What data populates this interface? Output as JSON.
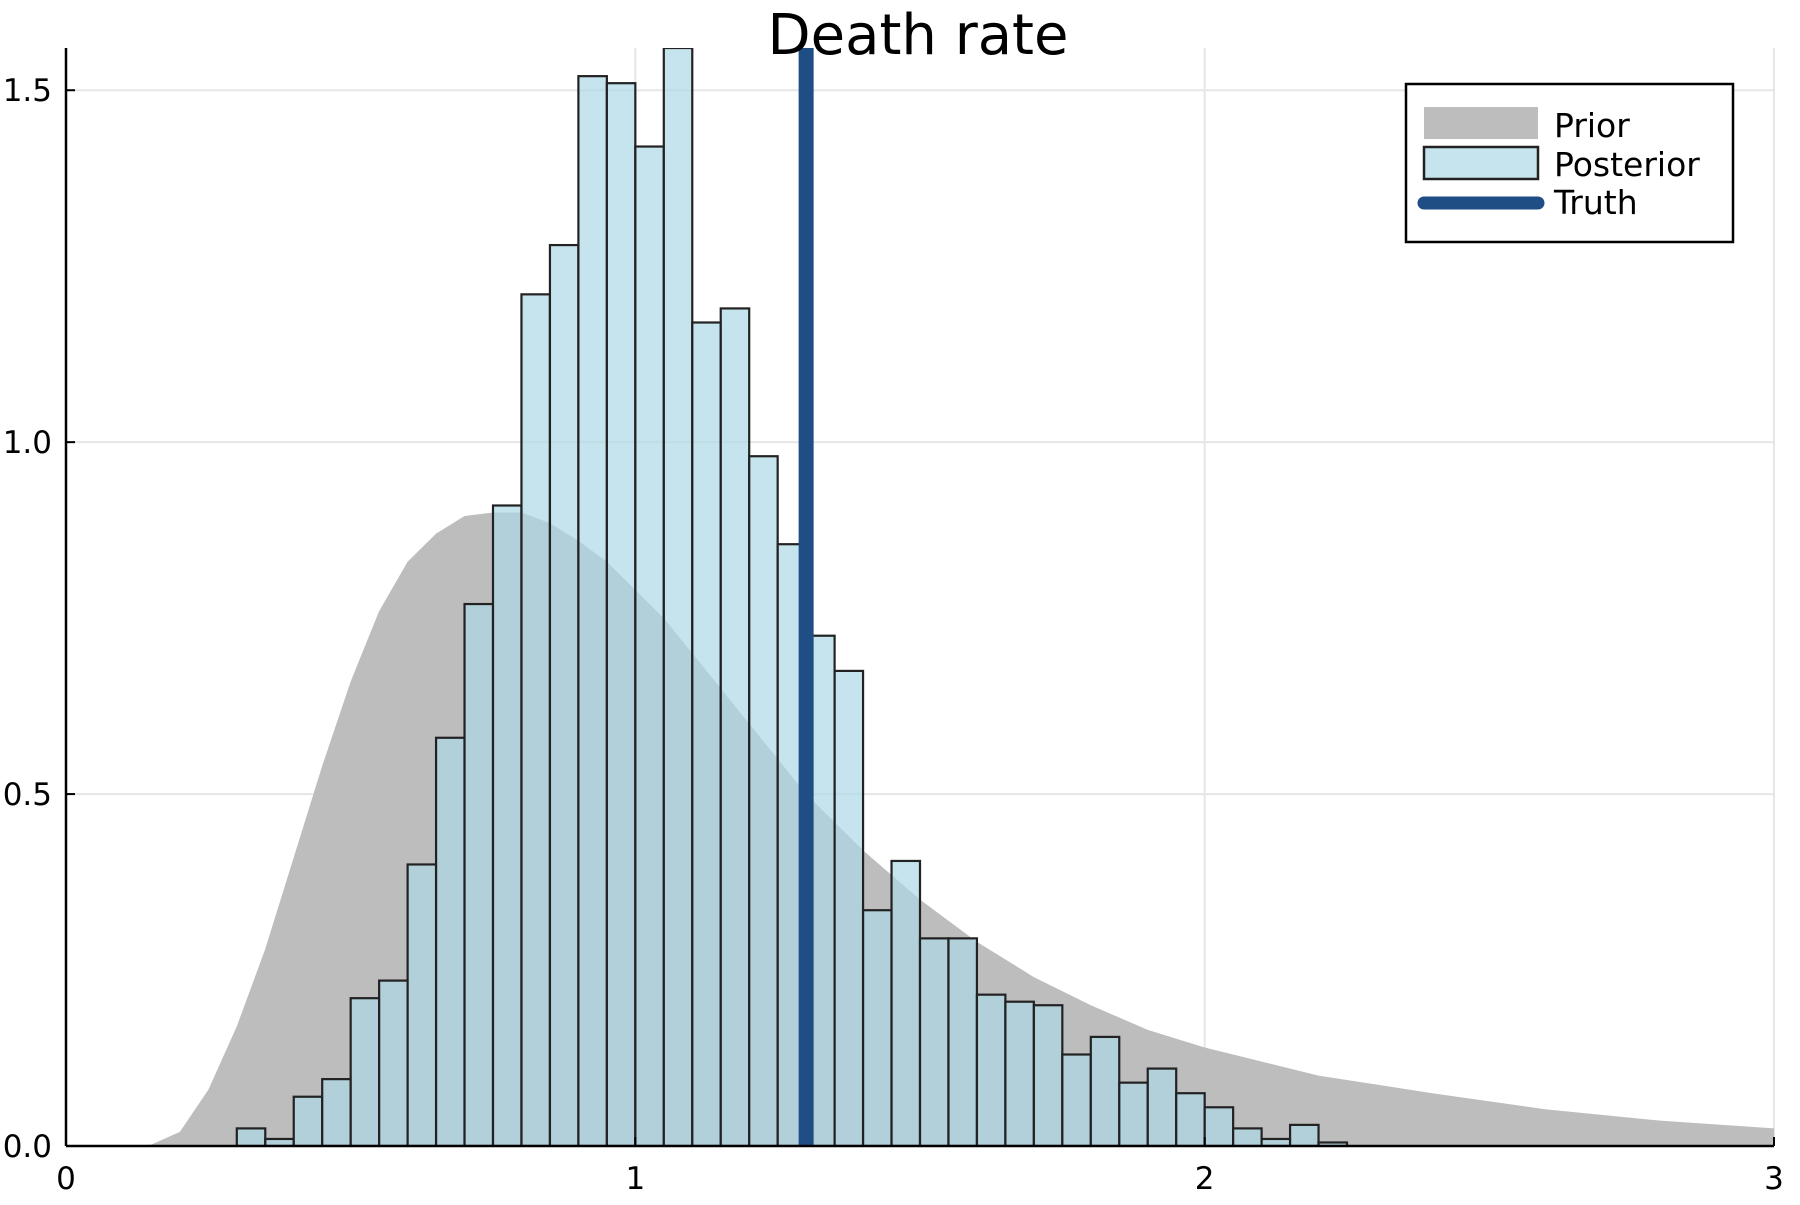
{
  "chart_data": {
    "type": "bar",
    "title": "Death rate",
    "xlabel": "",
    "ylabel": "",
    "xlim": [
      0,
      3
    ],
    "ylim": [
      0,
      1.56
    ],
    "grid": true,
    "legend_position": "top-right",
    "x_ticks": [
      {
        "value": 0,
        "label": "0"
      },
      {
        "value": 1,
        "label": "1"
      },
      {
        "value": 2,
        "label": "2"
      },
      {
        "value": 3,
        "label": "3"
      }
    ],
    "y_ticks": [
      {
        "value": 0,
        "label": "0.0"
      },
      {
        "value": 0.5,
        "label": "0.5"
      },
      {
        "value": 1.0,
        "label": "1.0"
      },
      {
        "value": 1.5,
        "label": "1.5"
      }
    ],
    "series": [
      {
        "name": "Prior",
        "kind": "area",
        "color": "#bdbdbd",
        "x": [
          0,
          0.1,
          0.15,
          0.2,
          0.25,
          0.3,
          0.35,
          0.4,
          0.45,
          0.5,
          0.55,
          0.6,
          0.65,
          0.7,
          0.75,
          0.8,
          0.85,
          0.9,
          0.95,
          1.0,
          1.05,
          1.1,
          1.15,
          1.2,
          1.25,
          1.3,
          1.35,
          1.4,
          1.45,
          1.5,
          1.6,
          1.7,
          1.8,
          1.9,
          2.0,
          2.2,
          2.4,
          2.6,
          2.8,
          3.0
        ],
        "y": [
          0,
          0.0,
          0.002,
          0.02,
          0.08,
          0.17,
          0.28,
          0.41,
          0.54,
          0.66,
          0.76,
          0.83,
          0.87,
          0.895,
          0.9,
          0.9,
          0.885,
          0.86,
          0.83,
          0.79,
          0.75,
          0.7,
          0.65,
          0.6,
          0.55,
          0.5,
          0.46,
          0.42,
          0.385,
          0.35,
          0.29,
          0.24,
          0.2,
          0.165,
          0.14,
          0.1,
          0.075,
          0.052,
          0.036,
          0.025
        ]
      },
      {
        "name": "Posterior",
        "kind": "histogram",
        "color": "#add8e6",
        "edge_color": "#222222",
        "bin_start": 0.3,
        "bin_width": 0.05,
        "values": [
          0.025,
          0.01,
          0.07,
          0.095,
          0.21,
          0.235,
          0.4,
          0.58,
          0.77,
          0.91,
          1.21,
          1.28,
          1.52,
          1.51,
          1.42,
          1.56,
          1.17,
          1.19,
          0.98,
          0.855,
          0.725,
          0.675,
          0.335,
          0.405,
          0.295,
          0.295,
          0.215,
          0.205,
          0.2,
          0.13,
          0.155,
          0.09,
          0.11,
          0.075,
          0.055,
          0.025,
          0.01,
          0.03,
          0.005
        ]
      },
      {
        "name": "Truth",
        "kind": "vline",
        "color": "#1f4e85",
        "x": 1.3
      }
    ]
  }
}
